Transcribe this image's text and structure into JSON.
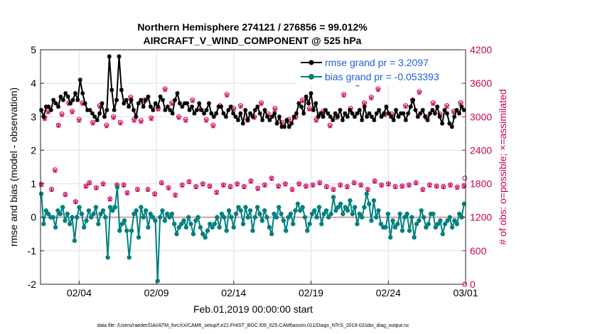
{
  "chart_data": {
    "type": "line",
    "title_line1": "Northern Hemisphere 274121 / 276856 = 99.012%",
    "title_line2": "AIRCRAFT_V_WIND_COMPONENT @ 525 hPa",
    "ylabel_left": "rmse and bias (model - observation)",
    "ylabel_right": "# of obs: o=possible; ×=assimilated",
    "xlabel": "Feb.01,2019 00:00:00 start",
    "footnote": "data file: /Users/raeder/DAI/ATM_forcXX/CAM6_setup/f.e21.FHIST_BGC.f09_025.CAM6assim.011/Diags_NTrS_2019-02/obs_diag_output.nc",
    "x_ticks": [
      "02/04",
      "02/09",
      "02/14",
      "02/19",
      "02/24",
      "03/01"
    ],
    "x_tick_days": [
      4,
      9,
      14,
      19,
      24,
      29
    ],
    "xlim": [
      1.5,
      29
    ],
    "ylim_left": [
      -2,
      5
    ],
    "ylim_right": [
      0,
      4200
    ],
    "yticks_left": [
      "-2",
      "-1",
      "0",
      "1",
      "2",
      "3",
      "4",
      "5"
    ],
    "yticks_right": [
      "0",
      "600",
      "1200",
      "1800",
      "2400",
      "3000",
      "3600",
      "4200"
    ],
    "legend": {
      "rmse_label": "rmse grand pr = 3.2097",
      "bias_label": "bias grand pr = -0.053393"
    },
    "colors": {
      "rmse": "#000000",
      "bias": "#00807f",
      "obs": "#c8005a",
      "zero_line": "#d0a0a0",
      "legend_text": "#1f5fd8",
      "grid": "#e0e0e0"
    },
    "rmse": [
      3.2,
      3.0,
      3.3,
      3.3,
      3.2,
      3.5,
      3.4,
      3.3,
      3.6,
      3.5,
      3.7,
      3.6,
      3.4,
      3.5,
      3.7,
      3.5,
      4.1,
      3.7,
      3.4,
      3.2,
      3.2,
      3.1,
      3.0,
      2.9,
      3.1,
      3.4,
      3.0,
      3.2,
      4.8,
      3.8,
      3.2,
      3.5,
      4.8,
      3.8,
      3.4,
      3.5,
      3.3,
      3.5,
      3.2,
      3.0,
      3.4,
      3.5,
      3.3,
      3.5,
      3.6,
      3.3,
      3.2,
      3.4,
      3.3,
      3.6,
      3.5,
      3.2,
      3.3,
      3.2,
      3.1,
      3.5,
      3.7,
      3.4,
      3.3,
      3.4,
      3.4,
      3.2,
      3.3,
      3.1,
      3.2,
      3.4,
      3.2,
      3.1,
      3.2,
      3.4,
      3.1,
      3.0,
      3.1,
      3.3,
      3.3,
      3.1,
      3.0,
      3.2,
      3.3,
      3.1,
      3.0,
      2.9,
      3.1,
      2.8,
      3.2,
      2.9,
      3.1,
      3.0,
      3.2,
      3.3,
      3.1,
      2.9,
      3.2,
      3.0,
      2.9,
      3.0,
      3.1,
      2.8,
      3.0,
      2.7,
      2.7,
      2.9,
      2.7,
      2.8,
      3.0,
      3.1,
      3.4,
      3.3,
      3.1,
      3.6,
      3.4,
      3.7,
      3.2,
      3.4,
      3.0,
      3.1,
      3.0,
      3.2,
      3.1,
      3.0,
      2.9,
      3.1,
      3.0,
      3.2,
      2.9,
      3.1,
      3.0,
      3.2,
      3.1,
      3.0,
      3.1,
      3.2,
      2.9,
      3.3,
      3.0,
      3.1,
      3.0,
      2.9,
      3.1,
      3.2,
      3.0,
      3.1,
      3.3,
      3.1,
      3.0,
      2.9,
      3.2,
      3.0,
      3.1,
      3.1,
      2.9,
      3.1,
      3.3,
      3.5,
      3.2,
      3.0,
      3.1,
      3.2,
      3.0,
      2.9,
      3.1,
      3.2,
      3.1,
      3.3,
      3.0,
      2.8,
      3.2,
      3.1,
      2.8,
      2.7,
      3.0,
      3.2,
      3.1,
      3.3,
      3.2
    ],
    "bias": [
      0.7,
      -0.2,
      0.2,
      0.1,
      0.0,
      0.0,
      -0.3,
      0.2,
      0.1,
      0.3,
      -0.1,
      0.1,
      -0.2,
      0.0,
      -0.7,
      0.0,
      0.3,
      0.1,
      -0.3,
      -0.1,
      0.2,
      0.0,
      0.1,
      0.3,
      -0.2,
      0.1,
      0.2,
      0.0,
      -1.2,
      0.3,
      0.2,
      0.3,
      0.9,
      -0.4,
      -0.2,
      -0.1,
      -0.4,
      -1.2,
      -0.4,
      0.1,
      0.2,
      -0.6,
      0.3,
      0.0,
      0.2,
      -0.3,
      0.1,
      0.0,
      -0.1,
      -1.9,
      0.0,
      0.2,
      -0.1,
      0.1,
      0.0,
      0.1,
      -0.2,
      -0.5,
      -0.3,
      -0.2,
      -0.1,
      -0.3,
      0.0,
      -0.2,
      -0.5,
      -0.1,
      0.0,
      -0.3,
      -0.5,
      -0.6,
      -0.4,
      -0.2,
      -0.3,
      -0.2,
      0.0,
      -0.3,
      0.1,
      0.0,
      -0.4,
      0.2,
      0.0,
      -0.3,
      0.1,
      0.3,
      0.2,
      -0.2,
      0.3,
      0.0,
      0.2,
      -0.4,
      0.0,
      0.3,
      0.1,
      -0.1,
      0.2,
      0.0,
      -0.3,
      -0.5,
      0.1,
      0.0,
      0.3,
      0.1,
      -0.1,
      -0.4,
      0.0,
      0.1,
      -0.2,
      0.2,
      0.4,
      0.2,
      0.3,
      0.0,
      -0.4,
      -0.2,
      0.1,
      0.2,
      0.0,
      0.3,
      -0.2,
      0.1,
      0.2,
      0.0,
      0.1,
      0.6,
      0.2,
      0.3,
      0.4,
      0.1,
      0.3,
      0.2,
      0.5,
      0.1,
      0.3,
      -0.2,
      0.1,
      0.0,
      0.3,
      0.7,
      0.4,
      -0.1,
      0.5,
      0.0,
      0.2,
      -0.2,
      -0.3,
      -0.3,
      0.1,
      -0.6,
      -0.1,
      -0.3,
      -0.2,
      0.1,
      -0.4,
      0.0,
      0.1,
      -0.4,
      0.0,
      -0.6,
      -0.2,
      -0.1,
      0.2,
      0.0,
      -0.3,
      -0.2,
      0.1,
      0.1,
      -0.3,
      -0.2,
      -0.1,
      -0.5,
      -0.2,
      -0.1,
      0.0,
      -0.3,
      -0.1,
      -0.2,
      0.1,
      0.0,
      0.4
    ],
    "obs_possible": [
      1790,
      2980,
      3100,
      1700,
      2050,
      2850,
      3050,
      1610,
      3250,
      3100,
      1480,
      2950,
      3250,
      1760,
      1820,
      2900,
      1730,
      3200,
      1800,
      2850,
      1530,
      3000,
      1780,
      2900,
      1780,
      1640,
      3350,
      2950,
      1700,
      2930,
      3300,
      1700,
      2980,
      1620,
      3150,
      1820,
      3500,
      1730,
      3250,
      1600,
      3000,
      1780,
      2950,
      1840,
      3300,
      1750,
      3150,
      1800,
      2950,
      1760,
      2850,
      1650,
      3200,
      1780,
      3400,
      1750,
      3150,
      1800,
      3200,
      1750,
      2950,
      1850,
      3000,
      1720,
      3250,
      1780,
      3050,
      1900,
      3150,
      1760,
      2900,
      1800,
      2950,
      1700,
      3000,
      1800,
      3300,
      1760,
      3150,
      1780,
      2950,
      1820,
      3100,
      1750,
      2850,
      1700,
      3000,
      1780,
      3400,
      1750,
      3150,
      1820,
      3600,
      1780,
      3250,
      1700,
      3350,
      1850,
      3500,
      1780,
      3050,
      1800,
      3050,
      1750,
      3650,
      1760,
      3200,
      1780,
      3300,
      1820,
      3450,
      1700,
      3000,
      1780,
      3250,
      1760,
      3050,
      1750,
      3200,
      1780,
      3100,
      1740,
      3250,
      1760
    ],
    "obs_assimilated": [
      1780,
      2960,
      3080,
      1690,
      2030,
      2840,
      3030,
      1600,
      3230,
      3080,
      1470,
      2930,
      3230,
      1750,
      1810,
      2880,
      1720,
      3180,
      1790,
      2830,
      1520,
      2980,
      1770,
      2880,
      1770,
      1630,
      3330,
      2930,
      1690,
      2910,
      3280,
      1690,
      2960,
      1610,
      3130,
      1810,
      3480,
      1720,
      3230,
      1590,
      2980,
      1770,
      2930,
      1830,
      3280,
      1740,
      3130,
      1790,
      2930,
      1750,
      2830,
      1640,
      3180,
      1770,
      3380,
      1740,
      3130,
      1790,
      3180,
      1740,
      2930,
      1840,
      2980,
      1710,
      3230,
      1770,
      3030,
      1890,
      3130,
      1750,
      2880,
      1790,
      2930,
      1690,
      2980,
      1790,
      3280,
      1750,
      3130,
      1770,
      2930,
      1810,
      3080,
      1740,
      2830,
      1690,
      2980,
      1770,
      3380,
      1740,
      3130,
      1810,
      3580,
      1770,
      3230,
      1690,
      3330,
      1840,
      3480,
      1770,
      3030,
      1790,
      3030,
      1740,
      3630,
      1750,
      3180,
      1770,
      3280,
      1810,
      3430,
      1690,
      2980,
      1770,
      3230,
      1750,
      3030,
      1740,
      3180,
      1770,
      3080,
      1730,
      3230,
      1750
    ]
  }
}
